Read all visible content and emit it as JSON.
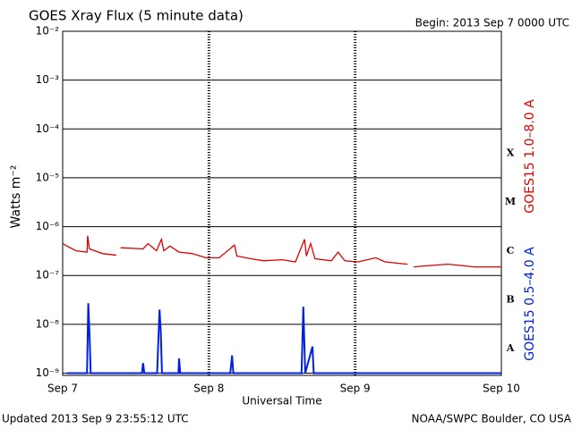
{
  "chart_data": {
    "type": "line",
    "title": "GOES Xray Flux (5 minute data)",
    "subtitle": "Begin:  2013 Sep 7 0000 UTC",
    "ylabel": "Watts m⁻²",
    "xlabel": "Universal Time",
    "footer_left": "Updated 2013 Sep  9 23:55:12 UTC",
    "footer_right": "NOAA/SWPC Boulder, CO USA",
    "flare_classes": [
      "X",
      "M",
      "C",
      "B",
      "A"
    ],
    "log_scale": true,
    "grid": true,
    "xlim": [
      0,
      72
    ],
    "xticks": [
      {
        "value": 0,
        "label": "Sep 7"
      },
      {
        "value": 24,
        "label": "Sep 8"
      },
      {
        "value": 48,
        "label": "Sep 9"
      },
      {
        "value": 72,
        "label": "Sep 10"
      }
    ],
    "ylim": [
      9e-10,
      0.01
    ],
    "yticks": [
      {
        "value": 0.01,
        "label": "10⁻²"
      },
      {
        "value": 0.001,
        "label": "10⁻³"
      },
      {
        "value": 0.0001,
        "label": "10⁻⁴"
      },
      {
        "value": 1e-05,
        "label": "10⁻⁵"
      },
      {
        "value": 1e-06,
        "label": "10⁻⁶"
      },
      {
        "value": 1e-07,
        "label": "10⁻⁷"
      },
      {
        "value": 1e-08,
        "label": "10⁻⁸"
      },
      {
        "value": 1e-09,
        "label": "10⁻⁹"
      }
    ],
    "series": [
      {
        "name": "GOES15 1.0–8.0 A",
        "color": "#e00000",
        "x": [
          0,
          0.7,
          2.2,
          4,
          4.1,
          4.4,
          6.6,
          8.8,
          9.2,
          9.5,
          13.2,
          14,
          15.4,
          16.2,
          16.6,
          17.6,
          19.1,
          21.3,
          23.5,
          25.7,
          28.2,
          28.6,
          30.9,
          33,
          36,
          38.2,
          39.7,
          40,
          40.7,
          41.4,
          44.1,
          45.2,
          46.3,
          48.5,
          51.4,
          52.9,
          56.6,
          57,
          57.6,
          60.2,
          63.2,
          67.6,
          72
        ],
        "values": [
          4.5e-07,
          4e-07,
          3.2e-07,
          3e-07,
          6.5e-07,
          3.5e-07,
          2.8e-07,
          2.6e-07,
          null,
          3.7e-07,
          3.5e-07,
          4.5e-07,
          3.2e-07,
          5.5e-07,
          3.2e-07,
          4e-07,
          3e-07,
          2.8e-07,
          2.3e-07,
          2.3e-07,
          4.2e-07,
          2.5e-07,
          2.2e-07,
          2e-07,
          2.1e-07,
          1.9e-07,
          5.5e-07,
          2.5e-07,
          4.5e-07,
          2.2e-07,
          2e-07,
          3e-07,
          2e-07,
          1.9e-07,
          2.3e-07,
          1.9e-07,
          1.7e-07,
          null,
          1.5e-07,
          1.6e-07,
          1.7e-07,
          1.5e-07,
          1.5e-07
        ]
      },
      {
        "name": "GOES15 0.5–4.0 A",
        "color": "#0020e0",
        "x": [
          0.7,
          4,
          4.2,
          4.4,
          4.6,
          13,
          13.2,
          13.4,
          15.5,
          15.9,
          16.1,
          16.3,
          19,
          19.1,
          19.3,
          27.5,
          27.8,
          28,
          39.2,
          39.5,
          39.8,
          41,
          41.2,
          72
        ],
        "values": [
          1e-09,
          1e-09,
          2.7e-08,
          7e-09,
          1e-09,
          1e-09,
          1.6e-09,
          1e-09,
          1e-09,
          2e-08,
          7e-09,
          1e-09,
          1e-09,
          2e-09,
          1e-09,
          1e-09,
          2.3e-09,
          1e-09,
          1e-09,
          2.3e-08,
          1e-09,
          3.5e-09,
          1e-09,
          1e-09
        ]
      }
    ]
  }
}
